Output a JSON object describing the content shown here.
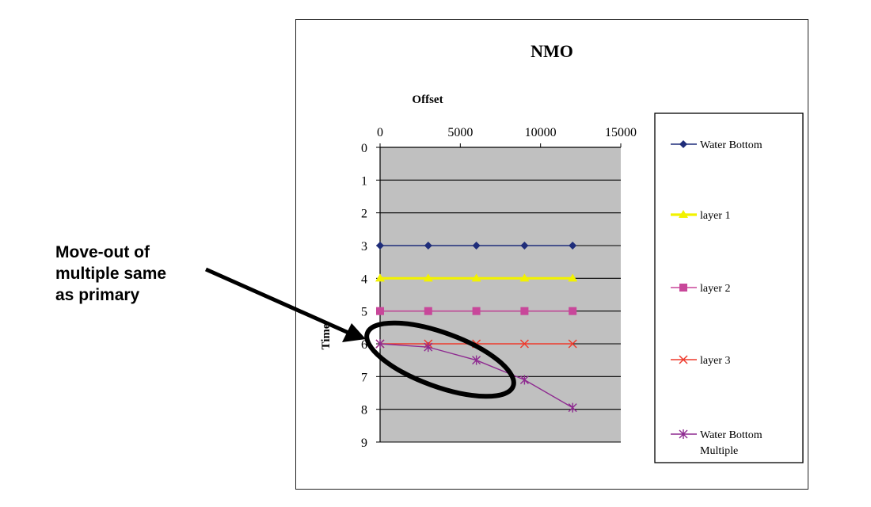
{
  "annotation": {
    "line1": "Move-out of",
    "line2": "multiple same",
    "line3": "as primary"
  },
  "chart_data": {
    "type": "line",
    "title": "NMO",
    "xlabel": "Offset",
    "ylabel": "Time",
    "x_axis_position": "top",
    "y_axis_reversed": true,
    "xlim": [
      0,
      15000
    ],
    "ylim": [
      9,
      0
    ],
    "xticks": [
      "0",
      "5000",
      "10000",
      "15000"
    ],
    "yticks": [
      "0",
      "1",
      "2",
      "3",
      "4",
      "5",
      "6",
      "7",
      "8",
      "9"
    ],
    "grid": "horizontal",
    "plot_background": "#c0c0c0",
    "legend_position": "right",
    "x": [
      0,
      3000,
      6000,
      9000,
      12000
    ],
    "series": [
      {
        "name": "Water Bottom",
        "values": [
          3,
          3,
          3,
          3,
          3
        ],
        "color": "#1f2d7a",
        "marker": "diamond"
      },
      {
        "name": "layer 1",
        "values": [
          4,
          4,
          4,
          4,
          4
        ],
        "color": "#f2f200",
        "marker": "triangle"
      },
      {
        "name": "layer 2",
        "values": [
          5,
          5,
          5,
          5,
          5
        ],
        "color": "#c8479a",
        "marker": "square"
      },
      {
        "name": "layer 3",
        "values": [
          6,
          6,
          6,
          6,
          6
        ],
        "color": "#ee3a2c",
        "marker": "x"
      },
      {
        "name_lines": [
          "Water Bottom",
          "Multiple"
        ],
        "name": "Water Bottom Multiple",
        "values": [
          6,
          6.1,
          6.5,
          7.1,
          7.95
        ],
        "color": "#8e2a90",
        "marker": "star"
      }
    ]
  }
}
